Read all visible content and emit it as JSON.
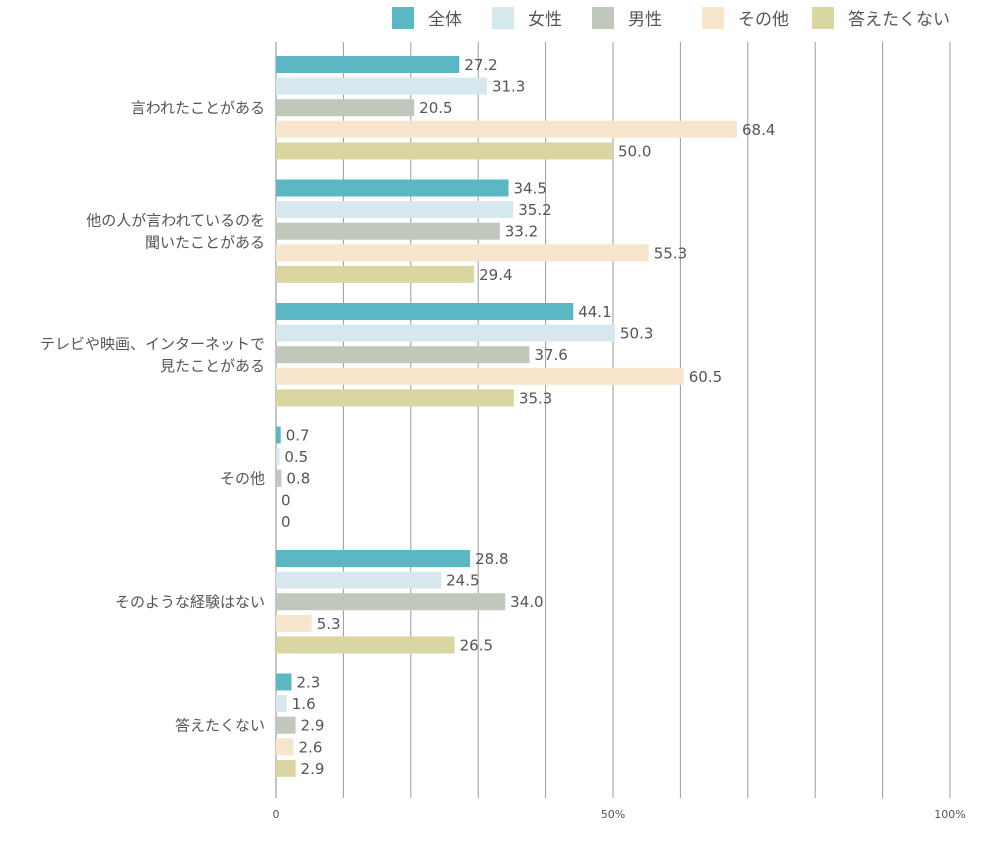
{
  "chart_data": {
    "type": "bar",
    "orientation": "horizontal",
    "categories": [
      "言われたことがある",
      "他の人が言われているのを\n聞いたことがある",
      "テレビや映画、インターネットで\n見たことがある",
      "その他",
      "そのような経験はない",
      "答えたくない"
    ],
    "series": [
      {
        "name": "全体",
        "color": "#5ab7c3",
        "values": [
          27.2,
          34.5,
          44.1,
          0.7,
          28.8,
          2.3
        ],
        "labels": [
          "27.2",
          "34.5",
          "44.1",
          "0.7",
          "28.8",
          "2.3"
        ]
      },
      {
        "name": "女性",
        "color": "#d6e8ed",
        "values": [
          31.3,
          35.2,
          50.3,
          0.5,
          24.5,
          1.6
        ],
        "labels": [
          "31.3",
          "35.2",
          "50.3",
          "0.5",
          "24.5",
          "1.6"
        ]
      },
      {
        "name": "男性",
        "color": "#bfc8ba",
        "values": [
          20.5,
          33.2,
          37.6,
          0.8,
          34.0,
          2.9
        ],
        "labels": [
          "20.5",
          "33.2",
          "37.6",
          "0.8",
          "34.0",
          "2.9"
        ]
      },
      {
        "name": "その他",
        "color": "#f7e6cd",
        "values": [
          68.4,
          55.3,
          60.5,
          0,
          5.3,
          2.6
        ],
        "labels": [
          "68.4",
          "55.3",
          "60.5",
          "0",
          "5.3",
          "2.6"
        ]
      },
      {
        "name": "答えたくない",
        "color": "#d9d6a2",
        "values": [
          50.0,
          29.4,
          35.3,
          0,
          26.5,
          2.9
        ],
        "labels": [
          "50.0",
          "29.4",
          "35.3",
          "0",
          "26.5",
          "2.9"
        ]
      }
    ],
    "xlim": [
      0,
      100
    ],
    "xticks": [
      {
        "value": 0,
        "label": "0"
      },
      {
        "value": 50,
        "label": "50%"
      },
      {
        "value": 100,
        "label": "100%"
      }
    ],
    "gridlines": [
      0,
      10,
      20,
      30,
      40,
      50,
      60,
      70,
      80,
      90,
      100
    ],
    "legend_position": "top-right",
    "title": "",
    "xlabel": "",
    "ylabel": ""
  }
}
